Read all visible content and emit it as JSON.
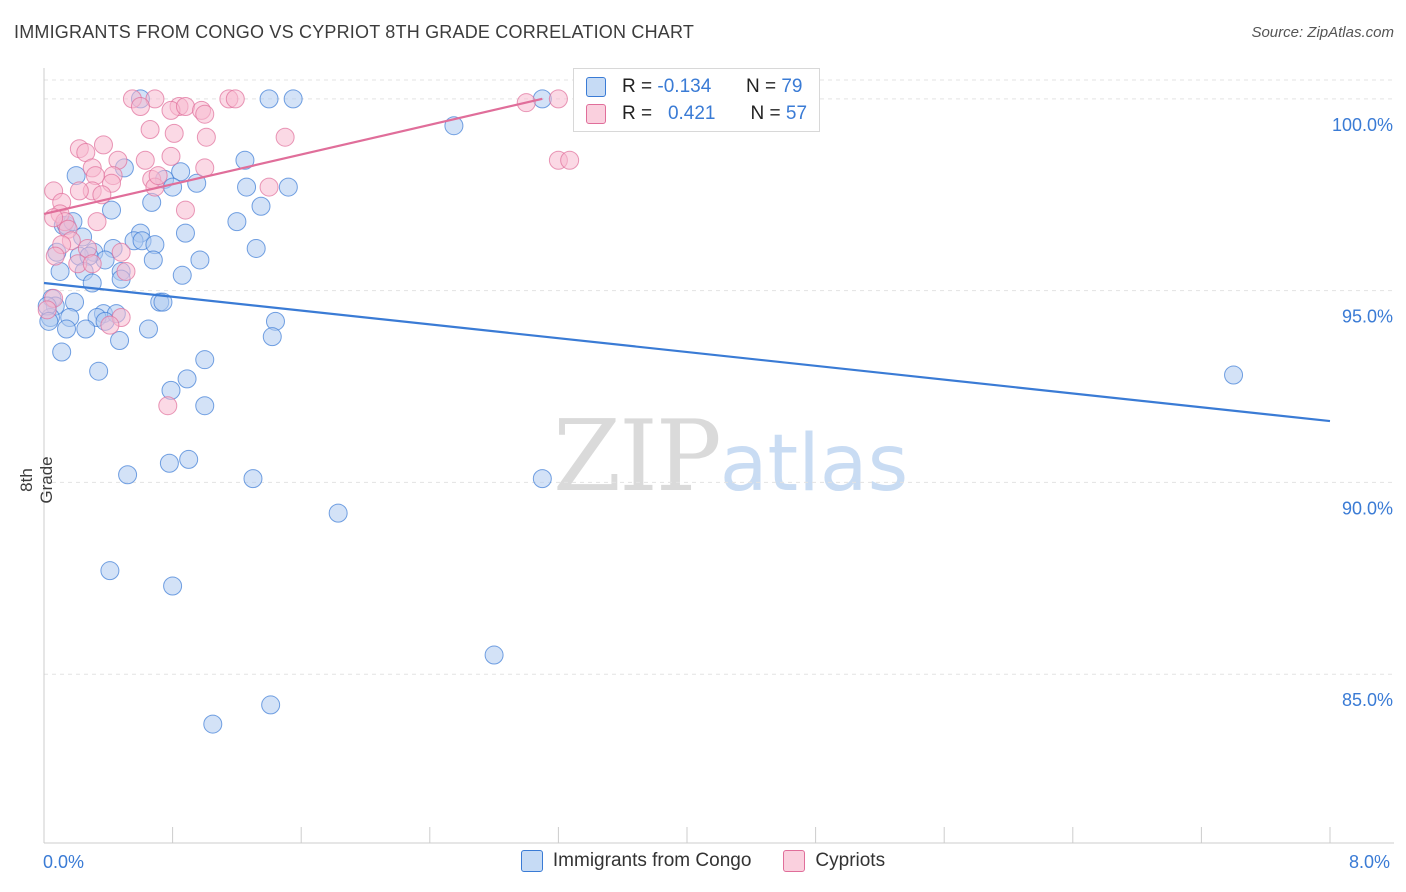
{
  "header": {
    "title": "IMMIGRANTS FROM CONGO VS CYPRIOT 8TH GRADE CORRELATION CHART",
    "source": "Source: ZipAtlas.com"
  },
  "watermark": {
    "zip": "ZIP",
    "atlas": "atlas"
  },
  "legend": {
    "rows": [
      {
        "r_label": "R =",
        "r_value": "-0.134",
        "n_label": "N =",
        "n_value": "79"
      },
      {
        "r_label": "R =",
        "r_value": "0.421",
        "n_label": "N =",
        "n_value": "57"
      }
    ]
  },
  "colors": {
    "blue": "#3a7bd5",
    "blue_fill": "#aecbf0",
    "pink": "#e06e9a",
    "pink_fill": "#f7b9cf",
    "grid": "#e3e3e3"
  },
  "chart_data": {
    "type": "scatter",
    "title": "IMMIGRANTS FROM CONGO VS CYPRIOT 8TH GRADE CORRELATION CHART",
    "xlabel": "",
    "ylabel": "8th Grade",
    "xlim": [
      0,
      8
    ],
    "ylim": [
      80.6,
      100.7
    ],
    "x_tick_labels": [
      "0.0%",
      "8.0%"
    ],
    "y_ticks": [
      85,
      90,
      95,
      100
    ],
    "y_tick_labels": [
      "85.0%",
      "90.0%",
      "95.0%",
      "100.0%"
    ],
    "legend_position": "bottom-center",
    "series": [
      {
        "name": "Immigrants from Congo",
        "color": "#3a7bd5",
        "r": -0.134,
        "n": 79,
        "trend": {
          "x": [
            0.0,
            8.0
          ],
          "y": [
            95.2,
            91.6
          ]
        },
        "points": [
          [
            0.6,
            100.0
          ],
          [
            1.4,
            100.0
          ],
          [
            1.55,
            100.0
          ],
          [
            3.1,
            100.0
          ],
          [
            2.55,
            99.3
          ],
          [
            1.25,
            98.4
          ],
          [
            0.5,
            98.2
          ],
          [
            0.85,
            98.1
          ],
          [
            0.2,
            98.0
          ],
          [
            0.75,
            97.9
          ],
          [
            0.8,
            97.7
          ],
          [
            0.95,
            97.8
          ],
          [
            1.26,
            97.7
          ],
          [
            1.52,
            97.7
          ],
          [
            0.67,
            97.3
          ],
          [
            1.35,
            97.2
          ],
          [
            0.42,
            97.1
          ],
          [
            0.12,
            96.7
          ],
          [
            0.14,
            96.7
          ],
          [
            0.18,
            96.8
          ],
          [
            0.24,
            96.4
          ],
          [
            1.2,
            96.8
          ],
          [
            0.6,
            96.5
          ],
          [
            0.88,
            96.5
          ],
          [
            0.56,
            96.3
          ],
          [
            0.61,
            96.3
          ],
          [
            0.69,
            96.2
          ],
          [
            1.32,
            96.1
          ],
          [
            0.31,
            96.0
          ],
          [
            0.43,
            96.1
          ],
          [
            0.08,
            96.0
          ],
          [
            0.22,
            95.9
          ],
          [
            0.38,
            95.8
          ],
          [
            0.28,
            95.9
          ],
          [
            0.68,
            95.8
          ],
          [
            0.97,
            95.8
          ],
          [
            0.48,
            95.5
          ],
          [
            0.1,
            95.5
          ],
          [
            0.25,
            95.5
          ],
          [
            0.86,
            95.4
          ],
          [
            0.48,
            95.3
          ],
          [
            0.3,
            95.2
          ],
          [
            0.05,
            94.8
          ],
          [
            0.07,
            94.6
          ],
          [
            0.19,
            94.7
          ],
          [
            0.72,
            94.7
          ],
          [
            0.74,
            94.7
          ],
          [
            0.04,
            94.3
          ],
          [
            0.37,
            94.4
          ],
          [
            0.45,
            94.4
          ],
          [
            0.16,
            94.3
          ],
          [
            0.33,
            94.3
          ],
          [
            0.38,
            94.2
          ],
          [
            1.44,
            94.2
          ],
          [
            0.26,
            94.0
          ],
          [
            0.14,
            94.0
          ],
          [
            0.65,
            94.0
          ],
          [
            1.42,
            93.8
          ],
          [
            0.47,
            93.7
          ],
          [
            0.11,
            93.4
          ],
          [
            1.0,
            93.2
          ],
          [
            0.34,
            92.9
          ],
          [
            0.89,
            92.7
          ],
          [
            0.79,
            92.4
          ],
          [
            1.0,
            92.0
          ],
          [
            7.4,
            92.8
          ],
          [
            0.9,
            90.6
          ],
          [
            0.78,
            90.5
          ],
          [
            0.52,
            90.2
          ],
          [
            1.3,
            90.1
          ],
          [
            3.1,
            90.1
          ],
          [
            1.83,
            89.2
          ],
          [
            0.41,
            87.7
          ],
          [
            0.8,
            87.3
          ],
          [
            2.8,
            85.5
          ],
          [
            1.41,
            84.2
          ],
          [
            1.05,
            83.7
          ],
          [
            0.02,
            94.6
          ],
          [
            0.03,
            94.2
          ]
        ]
      },
      {
        "name": "Cypriots",
        "color": "#e06e9a",
        "r": 0.421,
        "n": 57,
        "trend": {
          "x": [
            0.0,
            3.1
          ],
          "y": [
            97.0,
            100.0
          ]
        },
        "points": [
          [
            0.55,
            100.0
          ],
          [
            0.69,
            100.0
          ],
          [
            1.15,
            100.0
          ],
          [
            1.19,
            100.0
          ],
          [
            3.2,
            100.0
          ],
          [
            0.6,
            99.8
          ],
          [
            0.84,
            99.8
          ],
          [
            0.79,
            99.7
          ],
          [
            0.88,
            99.8
          ],
          [
            0.98,
            99.7
          ],
          [
            1.0,
            99.6
          ],
          [
            3.0,
            99.9
          ],
          [
            0.66,
            99.2
          ],
          [
            0.81,
            99.1
          ],
          [
            1.01,
            99.0
          ],
          [
            1.5,
            99.0
          ],
          [
            0.37,
            98.8
          ],
          [
            0.22,
            98.7
          ],
          [
            0.26,
            98.6
          ],
          [
            0.79,
            98.5
          ],
          [
            3.2,
            98.4
          ],
          [
            3.27,
            98.4
          ],
          [
            0.63,
            98.4
          ],
          [
            0.46,
            98.4
          ],
          [
            0.3,
            98.2
          ],
          [
            1.0,
            98.2
          ],
          [
            0.32,
            98.0
          ],
          [
            0.43,
            98.0
          ],
          [
            0.67,
            97.9
          ],
          [
            0.69,
            97.7
          ],
          [
            0.71,
            98.0
          ],
          [
            0.42,
            97.8
          ],
          [
            1.4,
            97.7
          ],
          [
            0.3,
            97.6
          ],
          [
            0.22,
            97.6
          ],
          [
            0.36,
            97.5
          ],
          [
            0.06,
            97.6
          ],
          [
            0.11,
            97.3
          ],
          [
            0.1,
            97.0
          ],
          [
            0.88,
            97.1
          ],
          [
            0.13,
            96.8
          ],
          [
            0.33,
            96.8
          ],
          [
            0.06,
            96.9
          ],
          [
            0.15,
            96.6
          ],
          [
            0.17,
            96.3
          ],
          [
            0.11,
            96.2
          ],
          [
            0.27,
            96.1
          ],
          [
            0.48,
            96.0
          ],
          [
            0.07,
            95.9
          ],
          [
            0.21,
            95.7
          ],
          [
            0.3,
            95.7
          ],
          [
            0.51,
            95.5
          ],
          [
            0.06,
            94.8
          ],
          [
            0.48,
            94.3
          ],
          [
            0.41,
            94.1
          ],
          [
            0.77,
            92.0
          ],
          [
            0.02,
            94.5
          ]
        ]
      }
    ]
  }
}
